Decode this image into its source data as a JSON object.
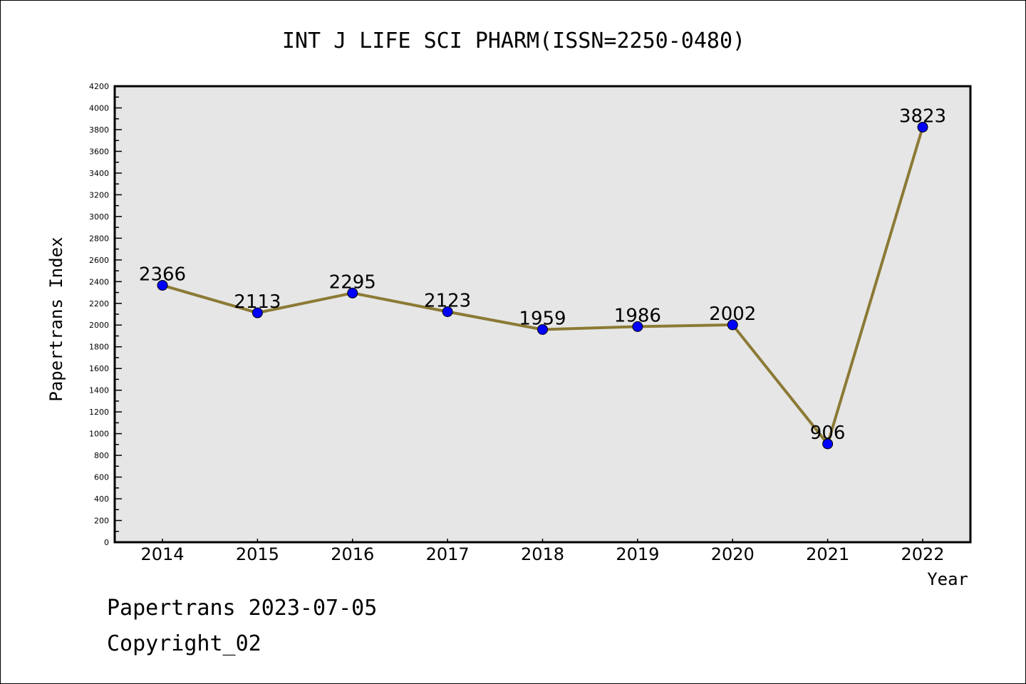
{
  "chart_data": {
    "type": "line",
    "title": "INT J LIFE SCI PHARM(ISSN=2250-0480)",
    "xlabel": "Year",
    "ylabel": "Papertrans Index",
    "categories": [
      "2014",
      "2015",
      "2016",
      "2017",
      "2018",
      "2019",
      "2020",
      "2021",
      "2022"
    ],
    "values": [
      2366,
      2113,
      2295,
      2123,
      1959,
      1986,
      2002,
      906,
      3823
    ],
    "ylim": [
      0,
      4200
    ],
    "yticks": [
      0,
      200,
      400,
      600,
      800,
      1000,
      1200,
      1400,
      1600,
      1800,
      2000,
      2200,
      2400,
      2600,
      2800,
      3000,
      3200,
      3400,
      3600,
      3800,
      4000,
      4200
    ],
    "grid": false,
    "line_color": "#8b7a35",
    "marker_color": "#0000ff",
    "background_color": "#e6e6e6"
  },
  "footer": {
    "line1": "Papertrans 2023-07-05",
    "line2": "Copyright_02"
  }
}
